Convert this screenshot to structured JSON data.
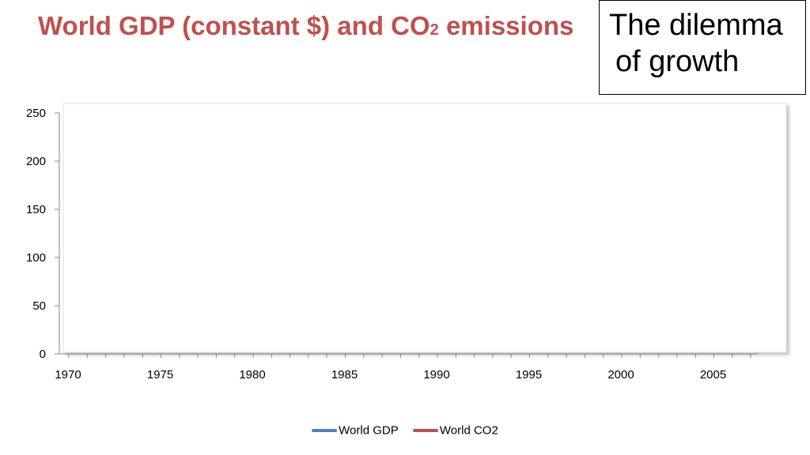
{
  "slide": {
    "title_main": "World GDP (constant $) and CO",
    "title_sub": "2",
    "title_end": " emissions",
    "callout_line1": "The dilemma",
    "callout_line2": "of growth"
  },
  "chart_data": {
    "type": "line",
    "title": "",
    "xlabel": "",
    "ylabel": "",
    "x_range": [
      1970,
      2008
    ],
    "x_ticks": [
      1970,
      1975,
      1980,
      1985,
      1990,
      1995,
      2000,
      2005
    ],
    "ylim": [
      0,
      250
    ],
    "y_ticks": [
      0,
      50,
      100,
      150,
      200,
      250
    ],
    "grid": false,
    "legend_position": "bottom",
    "series": [
      {
        "name": "World GDP",
        "color": "#4F81BD",
        "x": [],
        "values": []
      },
      {
        "name": "World CO2",
        "color": "#C0504D",
        "x": [],
        "values": []
      }
    ]
  }
}
